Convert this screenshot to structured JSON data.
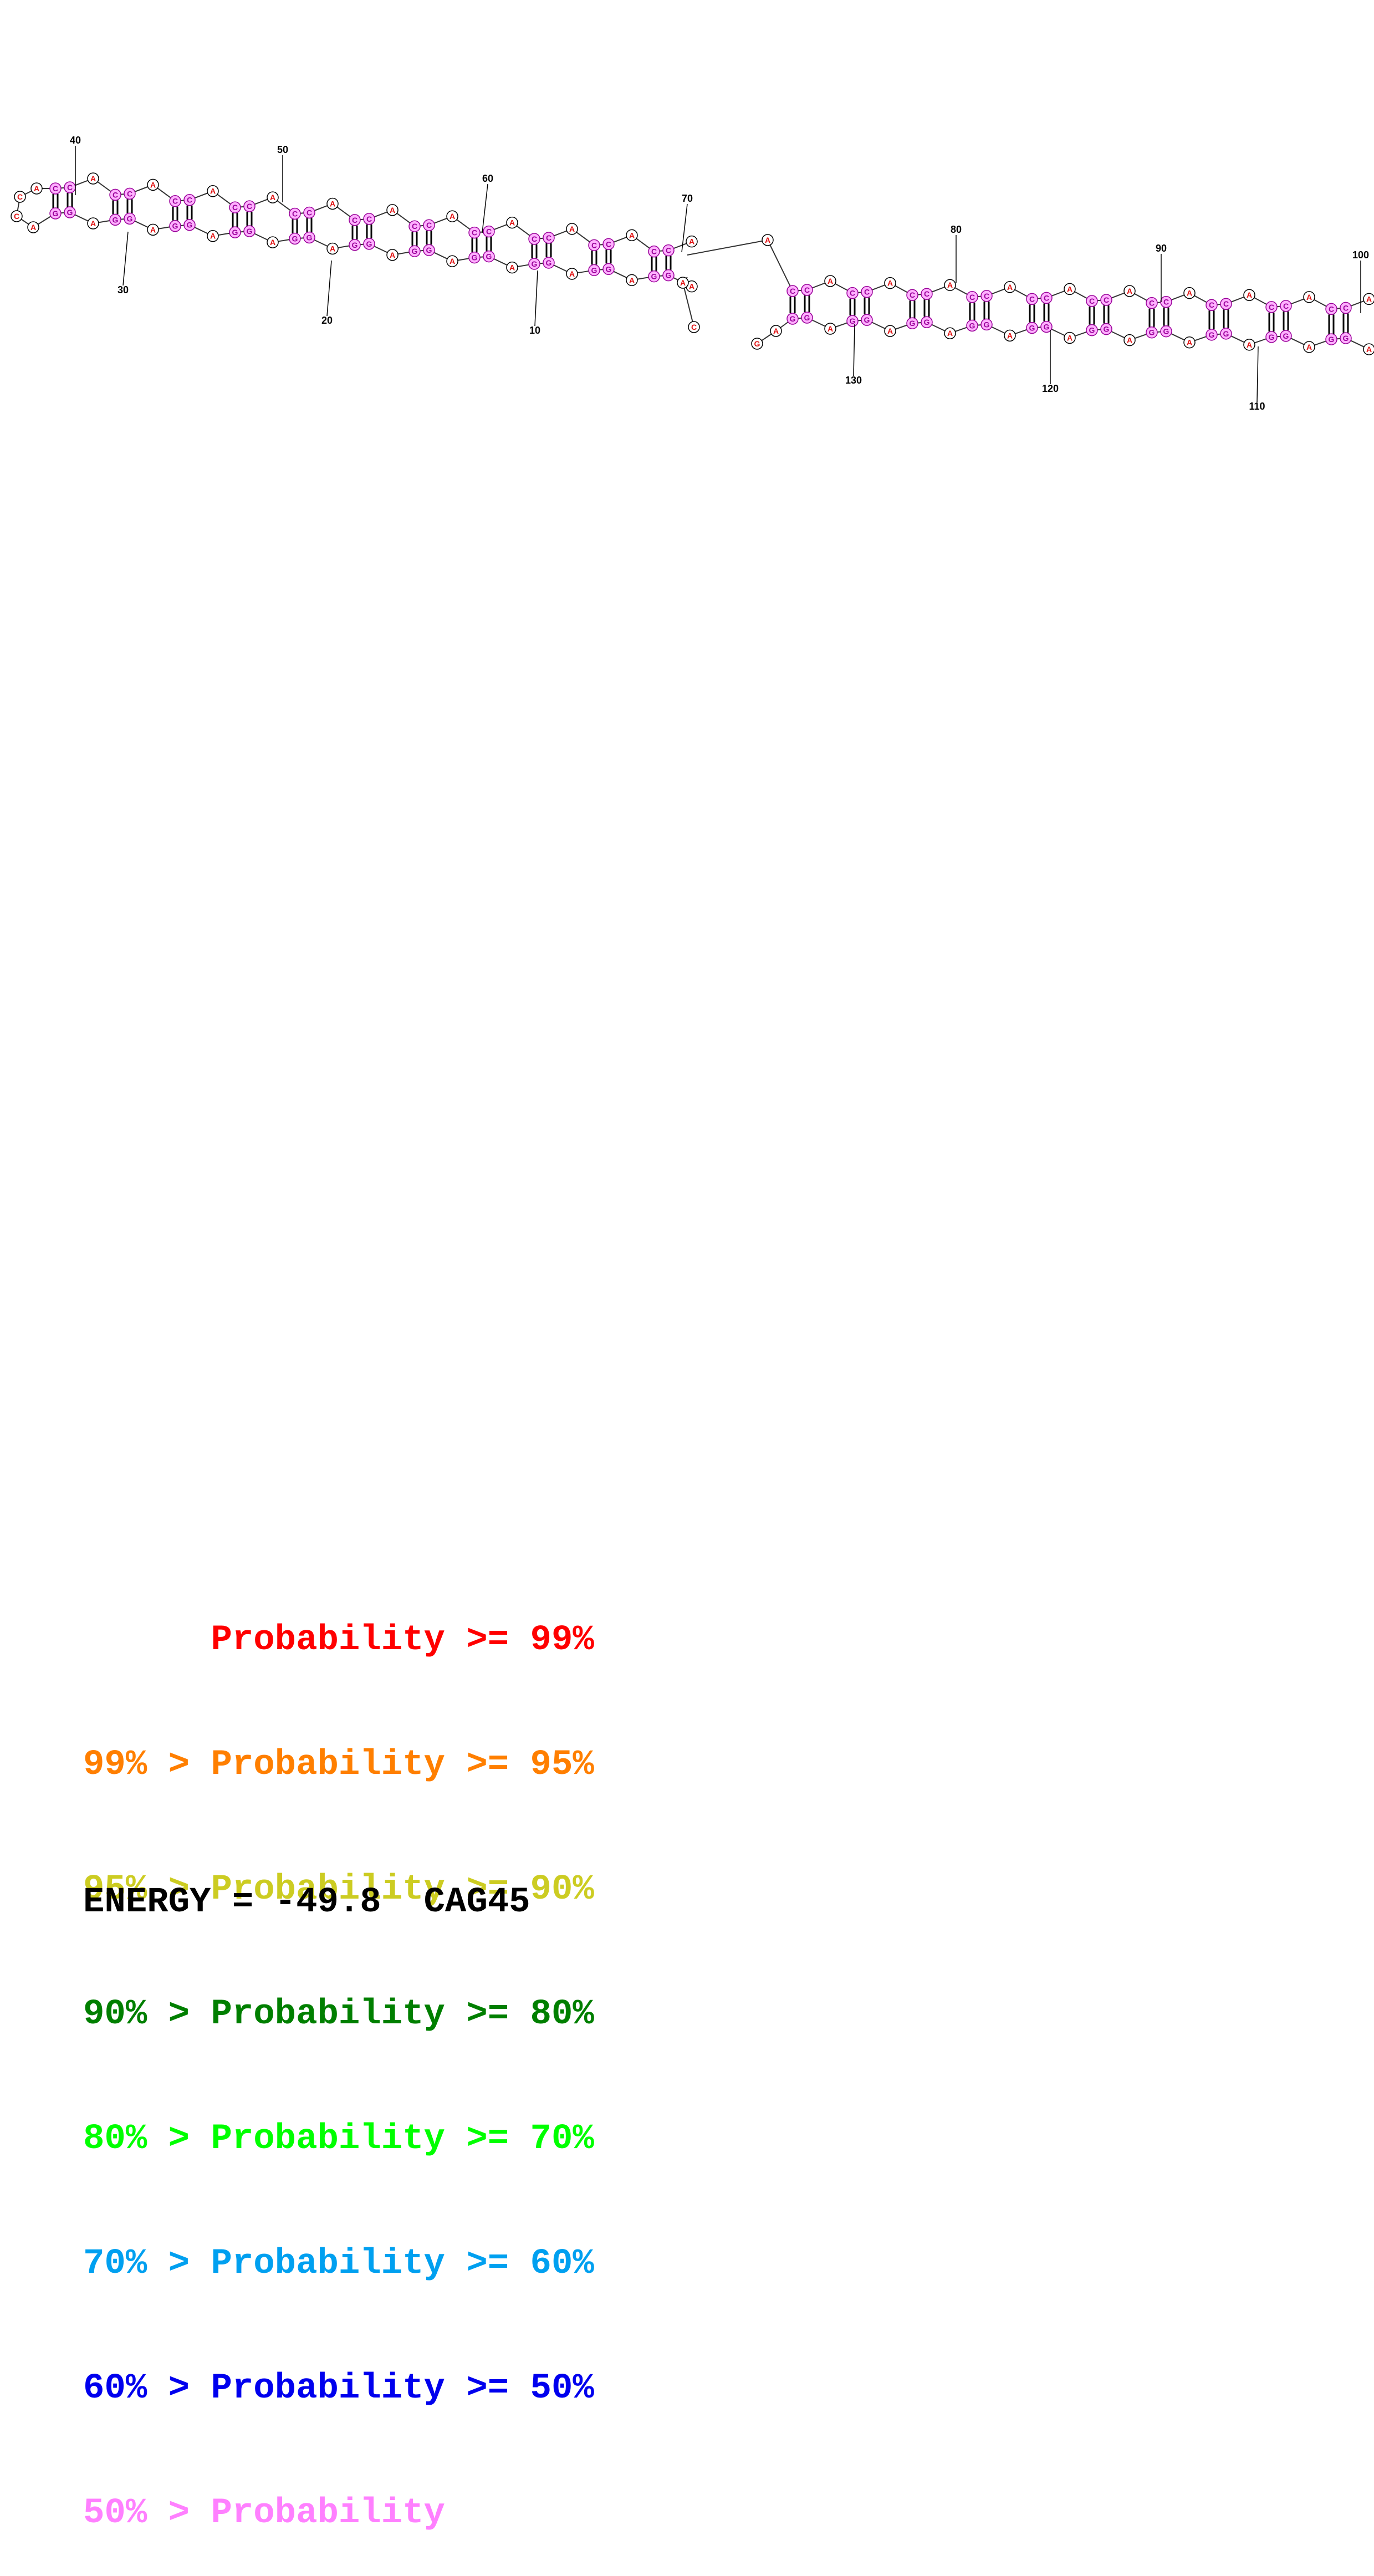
{
  "diagram": {
    "sequence_name": "CAG45",
    "base_glyphs": {
      "A": "A",
      "C": "C",
      "G": "G"
    },
    "colors": {
      "unpaired_base": "#e01010",
      "paired_fill": "#ffb0ff",
      "paired_stroke": "#990099",
      "backbone": "#333333"
    },
    "position_labels": [
      "10",
      "20",
      "30",
      "40",
      "50",
      "60",
      "70",
      "80",
      "90",
      "100",
      "110",
      "120",
      "130"
    ]
  },
  "legend": {
    "rows": [
      {
        "text": "      Probability >= 99%",
        "color": "#ff0000"
      },
      {
        "text": "99% > Probability >= 95%",
        "color": "#ff7f00"
      },
      {
        "text": "95% > Probability >= 90%",
        "color": "#cccc22"
      },
      {
        "text": "90% > Probability >= 80%",
        "color": "#007f00"
      },
      {
        "text": "80% > Probability >= 70%",
        "color": "#00ff00"
      },
      {
        "text": "70% > Probability >= 60%",
        "color": "#00a0f0"
      },
      {
        "text": "60% > Probability >= 50%",
        "color": "#0000ee"
      },
      {
        "text": "50% > Probability",
        "color": "#ff80ff"
      }
    ]
  },
  "energy": {
    "text": "ENERGY = -49.8  CAG45"
  }
}
